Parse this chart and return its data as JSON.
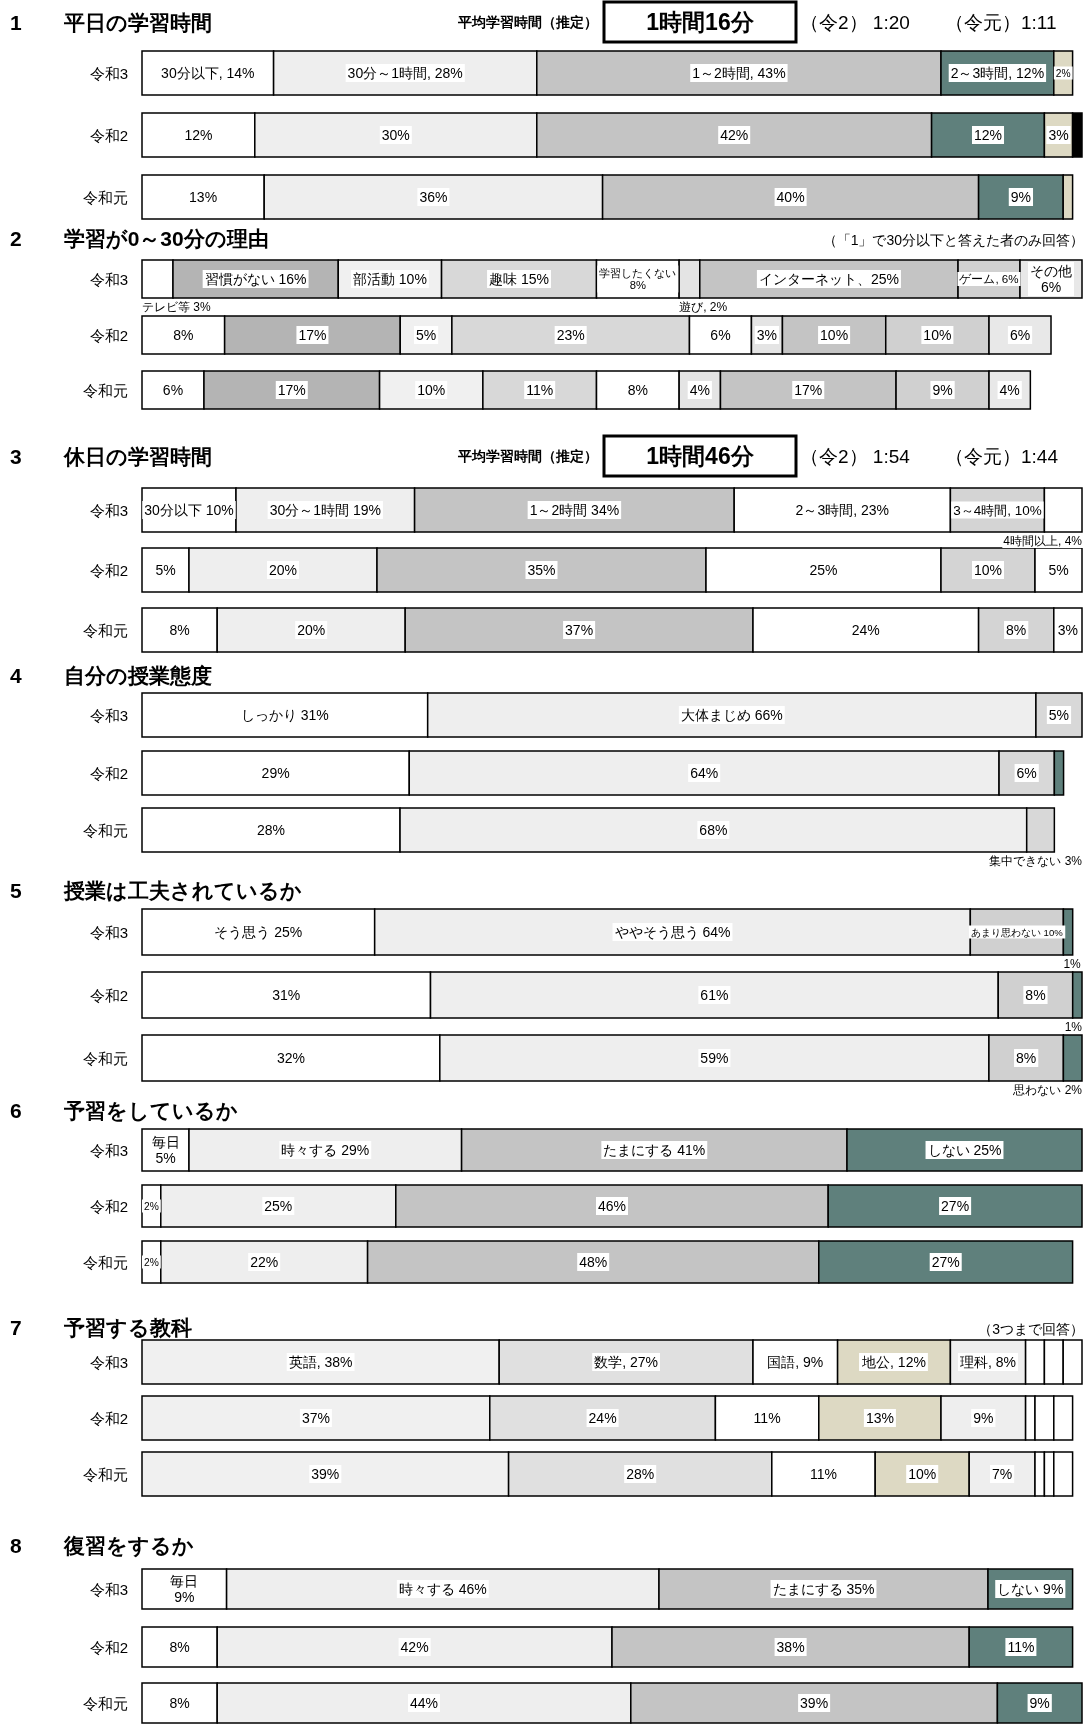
{
  "chart_data": [
    {
      "type": "bar",
      "orientation": "horizontal",
      "stacked": true,
      "title": "1　　平日の学習時間",
      "categories": [
        "令和3",
        "令和2",
        "令和元"
      ],
      "annotations": [
        "平均学習時間（推定）",
        "1時間16分",
        "（令2） 1:20",
        "（令元）1:11"
      ],
      "series": [
        {
          "color": "#ffffff",
          "values": [
            14,
            12,
            13
          ],
          "value_labels": [
            "30分以下, 14%",
            "12%",
            "13%"
          ]
        },
        {
          "color": "#eeeeee",
          "values": [
            28,
            30,
            36
          ],
          "value_labels": [
            "30分～1時間, 28%",
            "30%",
            "36%"
          ]
        },
        {
          "color": "#c4c4c4",
          "values": [
            43,
            42,
            40
          ],
          "value_labels": [
            "1～2時間, 43%",
            "42%",
            "40%"
          ]
        },
        {
          "color": "#5f807c",
          "values": [
            12,
            12,
            9
          ],
          "value_labels": [
            "2～3時間, 12%",
            "12%",
            "9%"
          ]
        },
        {
          "color": "#ddd9c3",
          "values": [
            2,
            3,
            1
          ],
          "value_labels": [
            "2%",
            "3%",
            null
          ]
        },
        {
          "color": "#000000",
          "values": [
            null,
            1,
            null
          ],
          "value_labels": [
            null,
            null,
            null
          ]
        }
      ]
    },
    {
      "type": "bar",
      "orientation": "horizontal",
      "stacked": true,
      "title": "2　　学習が0～30分の理由",
      "categories": [
        "令和3",
        "令和2",
        "令和元"
      ],
      "annotations": [
        "（「1」で30分以下と答えた者のみ回答）"
      ],
      "series": [
        {
          "color": "#ffffff",
          "values": [
            3,
            8,
            6
          ],
          "value_labels": [
            "テレビ等 3%",
            "8%",
            "6%"
          ]
        },
        {
          "color": "#b4b4b4",
          "values": [
            16,
            17,
            17
          ],
          "value_labels": [
            "習慣がない 16%",
            "17%",
            "17%"
          ]
        },
        {
          "color": "#f0f0f0",
          "values": [
            10,
            5,
            10
          ],
          "value_labels": [
            "部活動 10%",
            "5%",
            "10%"
          ]
        },
        {
          "color": "#d8d8d8",
          "values": [
            15,
            23,
            11
          ],
          "value_labels": [
            "趣味 15%",
            "23%",
            "11%"
          ]
        },
        {
          "color": "#ffffff",
          "values": [
            8,
            6,
            8
          ],
          "value_labels": [
            "学習したくない\n8%",
            "6%",
            "8%"
          ]
        },
        {
          "color": "#e4e4e4",
          "values": [
            2,
            3,
            4
          ],
          "value_labels": [
            "遊び, 2%",
            "3%",
            "4%"
          ]
        },
        {
          "color": "#c4c4c4",
          "values": [
            25,
            10,
            17
          ],
          "value_labels": [
            "インターネット、25%",
            "10%",
            "17%"
          ]
        },
        {
          "color": "#d0d0d0",
          "values": [
            6,
            10,
            9
          ],
          "value_labels": [
            "ゲーム, 6%",
            "10%",
            "9%"
          ]
        },
        {
          "color": "#e8e8e8",
          "values": [
            6,
            6,
            4
          ],
          "value_labels": [
            "その他\n6%",
            "6%",
            "4%"
          ]
        }
      ]
    },
    {
      "type": "bar",
      "orientation": "horizontal",
      "stacked": true,
      "title": "3　　休日の学習時間",
      "categories": [
        "令和3",
        "令和2",
        "令和元"
      ],
      "annotations": [
        "平均学習時間（推定）",
        "1時間46分",
        "（令2） 1:54",
        "（令元）1:44"
      ],
      "series": [
        {
          "color": "#ffffff",
          "values": [
            10,
            5,
            8
          ],
          "value_labels": [
            "30分以下 10%",
            "5%",
            "8%"
          ]
        },
        {
          "color": "#eeeeee",
          "values": [
            19,
            20,
            20
          ],
          "value_labels": [
            "30分～1時間 19%",
            "20%",
            "20%"
          ]
        },
        {
          "color": "#c4c4c4",
          "values": [
            34,
            35,
            37
          ],
          "value_labels": [
            "1～2時間 34%",
            "35%",
            "37%"
          ]
        },
        {
          "color": "#ffffff",
          "values": [
            23,
            25,
            24
          ],
          "value_labels": [
            "2～3時間, 23%",
            "25%",
            "24%"
          ]
        },
        {
          "color": "#d4d4d4",
          "values": [
            10,
            10,
            8
          ],
          "value_labels": [
            "3～4時間, 10%",
            "10%",
            "8%"
          ]
        },
        {
          "color": "#ffffff",
          "values": [
            4,
            5,
            3
          ],
          "value_labels": [
            "4時間以上,\n4%",
            "5%",
            "3%"
          ]
        }
      ]
    },
    {
      "type": "bar",
      "orientation": "horizontal",
      "stacked": true,
      "title": "4　　自分の授業態度",
      "categories": [
        "令和3",
        "令和2",
        "令和元"
      ],
      "series": [
        {
          "color": "#ffffff",
          "values": [
            31,
            29,
            28
          ],
          "value_labels": [
            "しっかり 31%",
            "29%",
            "28%"
          ]
        },
        {
          "color": "#eeeeee",
          "values": [
            66,
            64,
            68
          ],
          "value_labels": [
            "大体まじめ 66%",
            "64%",
            "68%"
          ]
        },
        {
          "color": "#d8d8d8",
          "values": [
            5,
            6,
            3
          ],
          "value_labels": [
            "5%",
            "6%",
            "集中できない 3%"
          ]
        },
        {
          "color": "#5f807c",
          "values": [
            null,
            1,
            null
          ],
          "value_labels": [
            null,
            null,
            null
          ]
        }
      ]
    },
    {
      "type": "bar",
      "orientation": "horizontal",
      "stacked": true,
      "title": "5　　授業は工夫されているか",
      "categories": [
        "令和3",
        "令和2",
        "令和元"
      ],
      "series": [
        {
          "color": "#ffffff",
          "values": [
            25,
            31,
            32
          ],
          "value_labels": [
            "そう思う 25%",
            "31%",
            "32%"
          ]
        },
        {
          "color": "#eeeeee",
          "values": [
            64,
            61,
            59
          ],
          "value_labels": [
            "ややそう思う 64%",
            "61%",
            "59%"
          ]
        },
        {
          "color": "#d0d0d0",
          "values": [
            10,
            8,
            8
          ],
          "value_labels": [
            "あまり思わない 10%",
            "8%",
            "8%"
          ]
        },
        {
          "color": "#5f807c",
          "values": [
            1,
            1,
            2
          ],
          "value_labels": [
            "1%",
            "1%",
            "思わない 2%"
          ]
        }
      ]
    },
    {
      "type": "bar",
      "orientation": "horizontal",
      "stacked": true,
      "title": "6　　予習をしているか",
      "categories": [
        "令和3",
        "令和2",
        "令和元"
      ],
      "series": [
        {
          "color": "#ffffff",
          "values": [
            5,
            2,
            2
          ],
          "value_labels": [
            "毎日\n5%",
            "2%",
            "2%"
          ]
        },
        {
          "color": "#eeeeee",
          "values": [
            29,
            25,
            22
          ],
          "value_labels": [
            "時々する 29%",
            "25%",
            "22%"
          ]
        },
        {
          "color": "#c4c4c4",
          "values": [
            41,
            46,
            48
          ],
          "value_labels": [
            "たまにする 41%",
            "46%",
            "48%"
          ]
        },
        {
          "color": "#5f807c",
          "values": [
            25,
            27,
            27
          ],
          "value_labels": [
            "しない 25%",
            "27%",
            "27%"
          ]
        }
      ]
    },
    {
      "type": "bar",
      "orientation": "horizontal",
      "stacked": true,
      "title": "7　　予習する教科",
      "categories": [
        "令和3",
        "令和2",
        "令和元"
      ],
      "annotations": [
        "（3つまで回答）"
      ],
      "series": [
        {
          "color": "#f0f0f0",
          "values": [
            38,
            37,
            39
          ],
          "value_labels": [
            "英語, 38%",
            "37%",
            "39%"
          ]
        },
        {
          "color": "#e0e0e0",
          "values": [
            27,
            24,
            28
          ],
          "value_labels": [
            "数学, 27%",
            "24%",
            "28%"
          ]
        },
        {
          "color": "#ffffff",
          "values": [
            9,
            11,
            11
          ],
          "value_labels": [
            "国語, 9%",
            "11%",
            "11%"
          ]
        },
        {
          "color": "#ddd9c3",
          "values": [
            12,
            13,
            10
          ],
          "value_labels": [
            "地公, 12%",
            "13%",
            "10%"
          ]
        },
        {
          "color": "#eeeeee",
          "values": [
            8,
            9,
            7
          ],
          "value_labels": [
            "理科, 8%",
            "9%",
            "7%"
          ]
        },
        {
          "color": "#ffffff",
          "values": [
            2,
            1,
            1
          ],
          "value_labels": [
            null,
            null,
            null
          ]
        },
        {
          "color": "#ffffff",
          "values": [
            2,
            2,
            1
          ],
          "value_labels": [
            null,
            null,
            null
          ]
        },
        {
          "color": "#ffffff",
          "values": [
            2,
            2,
            2
          ],
          "value_labels": [
            null,
            null,
            null
          ]
        }
      ]
    },
    {
      "type": "bar",
      "orientation": "horizontal",
      "stacked": true,
      "title": "8　　復習をするか",
      "categories": [
        "令和3",
        "令和2",
        "令和元"
      ],
      "series": [
        {
          "color": "#ffffff",
          "values": [
            9,
            8,
            8
          ],
          "value_labels": [
            "毎日\n9%",
            "8%",
            "8%"
          ]
        },
        {
          "color": "#eeeeee",
          "values": [
            46,
            42,
            44
          ],
          "value_labels": [
            "時々する 46%",
            "42%",
            "44%"
          ]
        },
        {
          "color": "#c4c4c4",
          "values": [
            35,
            38,
            39
          ],
          "value_labels": [
            "たまにする 35%",
            "38%",
            "39%"
          ]
        },
        {
          "color": "#5f807c",
          "values": [
            9,
            11,
            9
          ],
          "value_labels": [
            "しない 9%",
            "11%",
            "9%"
          ]
        }
      ]
    }
  ]
}
